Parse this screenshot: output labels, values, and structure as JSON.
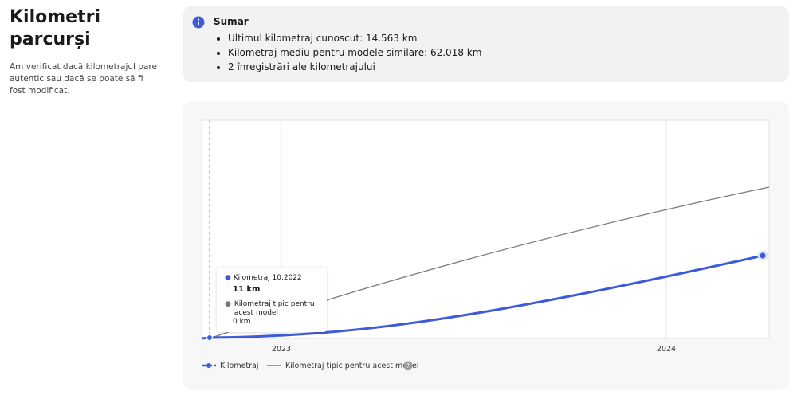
{
  "header": {
    "title": "Kilometri parcurși",
    "description": "Am verificat dacă kilometrajul pare autentic sau dacă se poate să fi fost modificat."
  },
  "summary": {
    "title": "Sumar",
    "items": [
      "Ultimul kilometraj cunoscut: 14.563 km",
      "Kilometraj mediu pentru modele similare: 62.018 km",
      "2 înregistrări ale kilometrajului"
    ]
  },
  "chart": {
    "x_labels": [
      "2023",
      "2024"
    ],
    "legend": [
      "Kilometraj",
      "Kilometraj tipic pentru acest model"
    ],
    "tooltip": {
      "title": "Kilometraj 10.2022",
      "value": "11 km",
      "typical_label": "Kilometraj tipic pentru acest model",
      "typical_value": "0 km"
    }
  }
}
